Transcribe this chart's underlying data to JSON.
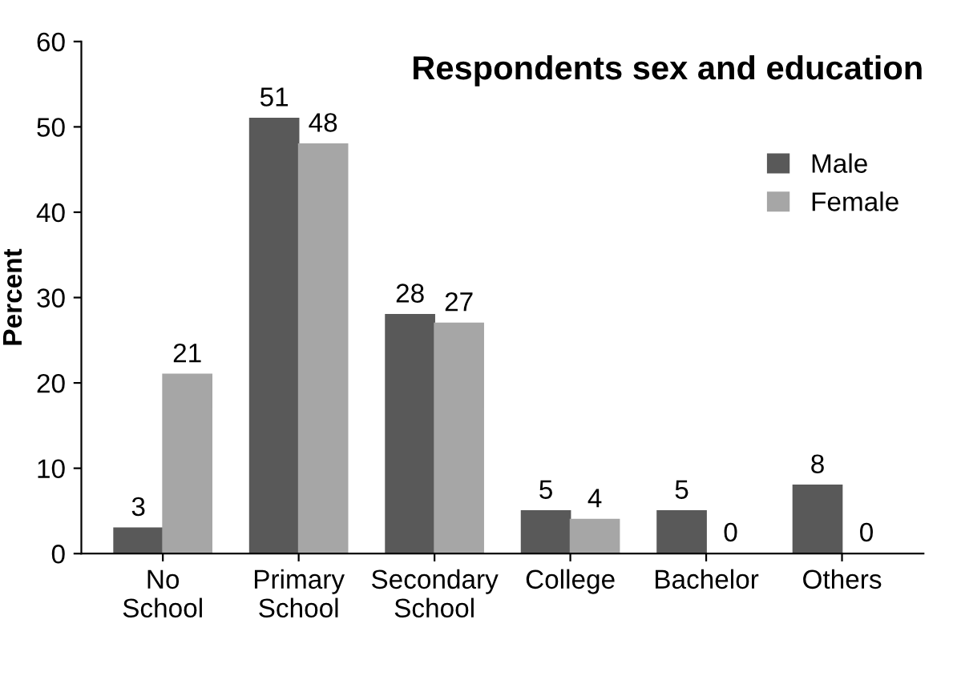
{
  "chart_data": {
    "type": "bar",
    "title": "Respondents sex and education",
    "ylabel": "Percent",
    "categories": [
      "No\nSchool",
      "Primary\nSchool",
      "Secondary\nSchool",
      "College",
      "Bachelor",
      "Others"
    ],
    "series": [
      {
        "name": "Male",
        "color": "#595959",
        "values": [
          3,
          51,
          28,
          5,
          5,
          8
        ]
      },
      {
        "name": "Female",
        "color": "#a6a6a6",
        "values": [
          21,
          48,
          27,
          4,
          0,
          0
        ]
      }
    ],
    "ylim": [
      0,
      60
    ],
    "yticks": [
      0,
      10,
      20,
      30,
      40,
      50,
      60
    ],
    "grid": false,
    "legend": "right",
    "data_labels": true
  }
}
